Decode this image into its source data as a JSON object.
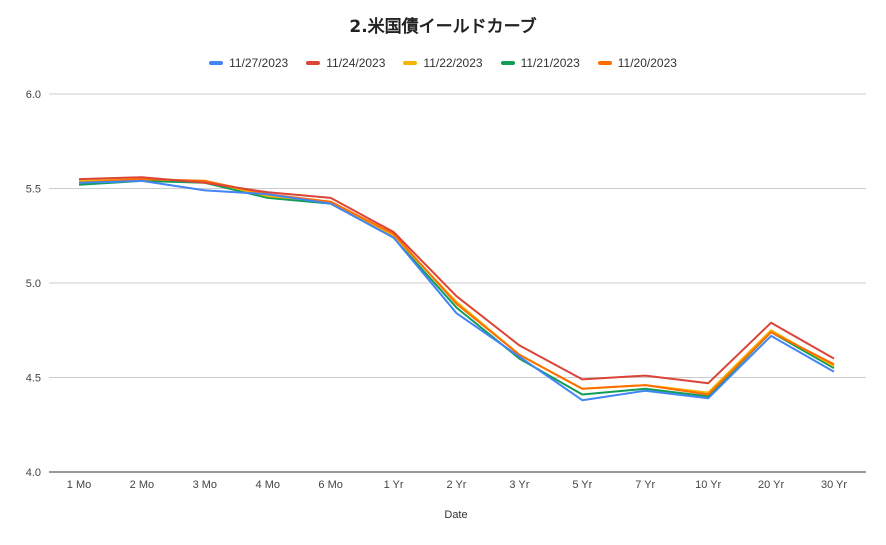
{
  "chart_data": {
    "type": "line",
    "title": "2.米国債イールドカーブ",
    "xlabel": "Date",
    "ylabel": "",
    "ylim": [
      4.0,
      6.0
    ],
    "yticks": [
      "4.0",
      "4.5",
      "5.0",
      "5.5",
      "6.0"
    ],
    "grid": true,
    "legend": "top",
    "categories": [
      "1 Mo",
      "2 Mo",
      "3 Mo",
      "4 Mo",
      "6 Mo",
      "1 Yr",
      "2 Yr",
      "3 Yr",
      "5 Yr",
      "7 Yr",
      "10 Yr",
      "20 Yr",
      "30 Yr"
    ],
    "series": [
      {
        "name": "11/27/2023",
        "color": "#4285f4",
        "values": [
          5.53,
          5.54,
          5.49,
          5.47,
          5.42,
          5.24,
          4.84,
          4.61,
          4.38,
          4.43,
          4.39,
          4.72,
          4.53
        ]
      },
      {
        "name": "11/24/2023",
        "color": "#db4437",
        "values": [
          5.55,
          5.56,
          5.53,
          5.48,
          5.45,
          5.27,
          4.93,
          4.67,
          4.49,
          4.51,
          4.47,
          4.79,
          4.6
        ]
      },
      {
        "name": "11/22/2023",
        "color": "#f4b400",
        "values": [
          5.54,
          5.55,
          5.54,
          5.46,
          5.43,
          5.25,
          4.9,
          4.62,
          4.44,
          4.46,
          4.42,
          4.75,
          4.56
        ]
      },
      {
        "name": "11/21/2023",
        "color": "#0f9d58",
        "values": [
          5.52,
          5.54,
          5.53,
          5.45,
          5.42,
          5.24,
          4.87,
          4.6,
          4.41,
          4.44,
          4.4,
          4.74,
          4.55
        ]
      },
      {
        "name": "11/20/2023",
        "color": "#ff6d01",
        "values": [
          5.53,
          5.55,
          5.54,
          5.47,
          5.43,
          5.26,
          4.89,
          4.62,
          4.44,
          4.46,
          4.41,
          4.74,
          4.57
        ]
      }
    ]
  }
}
